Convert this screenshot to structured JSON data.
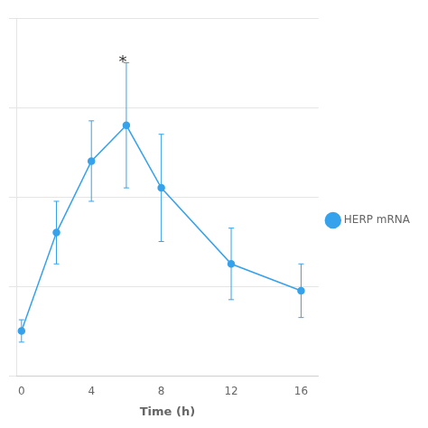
{
  "chart_data": {
    "type": "line",
    "x": [
      0,
      2,
      4,
      6,
      8,
      12,
      16
    ],
    "series": [
      {
        "name": "HERP mRNA",
        "values": [
          1.0,
          3.2,
          4.8,
          5.6,
          4.2,
          2.5,
          1.9
        ],
        "yerr": [
          0.25,
          0.7,
          0.9,
          1.4,
          1.2,
          0.8,
          0.6
        ],
        "marker": "circle",
        "line_style": "solid"
      }
    ],
    "xlabel": "Time (h)",
    "xlim": [
      -0.3,
      17
    ],
    "ylim": [
      0,
      8
    ],
    "xticks": [
      0,
      4,
      8,
      12,
      16
    ],
    "yticks": [
      0,
      2,
      4,
      6,
      8
    ],
    "grid": "y",
    "tick_labels": "x",
    "legend": "right",
    "annotations": [
      {
        "text": "*",
        "x": 5.8,
        "y": 7.0
      }
    ]
  }
}
